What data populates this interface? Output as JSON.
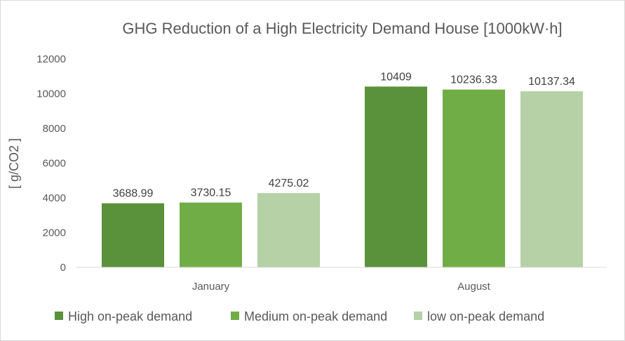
{
  "chart_data": {
    "type": "bar",
    "title": "GHG Reduction of a High Electricity Demand House [1000kW·h]",
    "ylabel": "[ g/CO2 ]",
    "xlabel": "",
    "categories": [
      "January",
      "August"
    ],
    "ylim": [
      0,
      12000
    ],
    "yticks": [
      "0",
      "2000",
      "4000",
      "6000",
      "8000",
      "10000",
      "12000"
    ],
    "grid": false,
    "legend_position": "bottom",
    "series": [
      {
        "name": "High on-peak demand",
        "color": "#5a913b",
        "values": [
          3688.99,
          10409
        ],
        "labels": [
          "3688.99",
          "10409"
        ]
      },
      {
        "name": "Medium on-peak demand",
        "color": "#71ad47",
        "values": [
          3730.15,
          10236.33
        ],
        "labels": [
          "3730.15",
          "10236.33"
        ]
      },
      {
        "name": "low on-peak demand",
        "color": "#b5d1a5",
        "values": [
          4275.02,
          10137.34
        ],
        "labels": [
          "4275.02",
          "10137.34"
        ]
      }
    ]
  }
}
